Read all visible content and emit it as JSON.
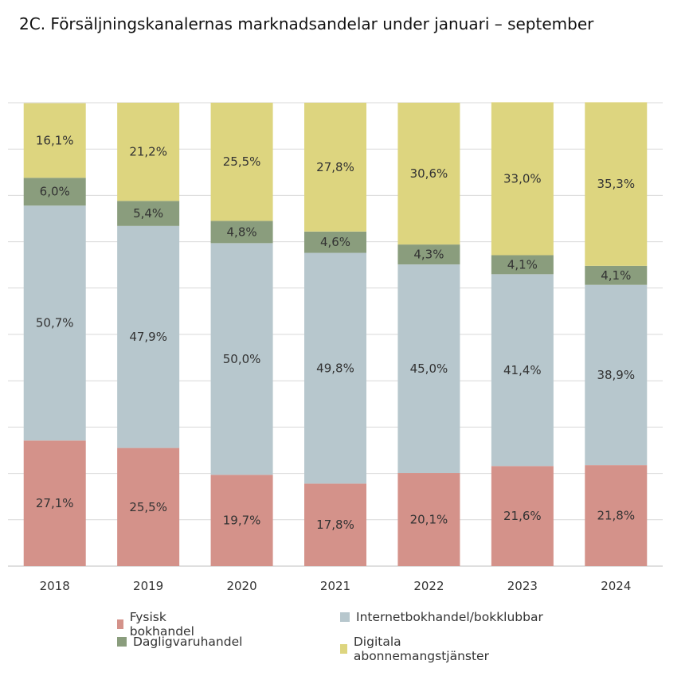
{
  "title": "2C. Försäljningskanalernas marknadsandelar under januari – september",
  "chart_data": {
    "type": "bar",
    "stacked": true,
    "categories": [
      "2018",
      "2019",
      "2020",
      "2021",
      "2022",
      "2023",
      "2024"
    ],
    "ylim": [
      0,
      100
    ],
    "grid": true,
    "legend_position": "bottom",
    "series": [
      {
        "name": "Fysisk bokhandel",
        "color": "#d4928a",
        "values": [
          27.1,
          25.5,
          19.7,
          17.8,
          20.1,
          21.6,
          21.8
        ],
        "labels": [
          "27,1%",
          "25,5%",
          "19,7%",
          "17,8%",
          "20,1%",
          "21,6%",
          "21,8%"
        ]
      },
      {
        "name": "Internetbokhandel/bokklubbar",
        "color": "#b7c7cd",
        "values": [
          50.7,
          47.9,
          50.0,
          49.8,
          45.0,
          41.4,
          38.9
        ],
        "labels": [
          "50,7%",
          "47,9%",
          "50,0%",
          "49,8%",
          "45,0%",
          "41,4%",
          "38,9%"
        ]
      },
      {
        "name": "Dagligvaruhandel",
        "color": "#8a9d7d",
        "values": [
          6.0,
          5.4,
          4.8,
          4.6,
          4.3,
          4.1,
          4.1
        ],
        "labels": [
          "6,0%",
          "5,4%",
          "4,8%",
          "4,6%",
          "4,3%",
          "4,1%",
          "4,1%"
        ]
      },
      {
        "name": "Digitala abonnemangstjänster",
        "color": "#ddd57f",
        "values": [
          16.1,
          21.2,
          25.5,
          27.8,
          30.6,
          33.0,
          35.3
        ],
        "labels": [
          "16,1%",
          "21,2%",
          "25,5%",
          "27,8%",
          "30,6%",
          "33,0%",
          "35,3%"
        ]
      }
    ]
  }
}
